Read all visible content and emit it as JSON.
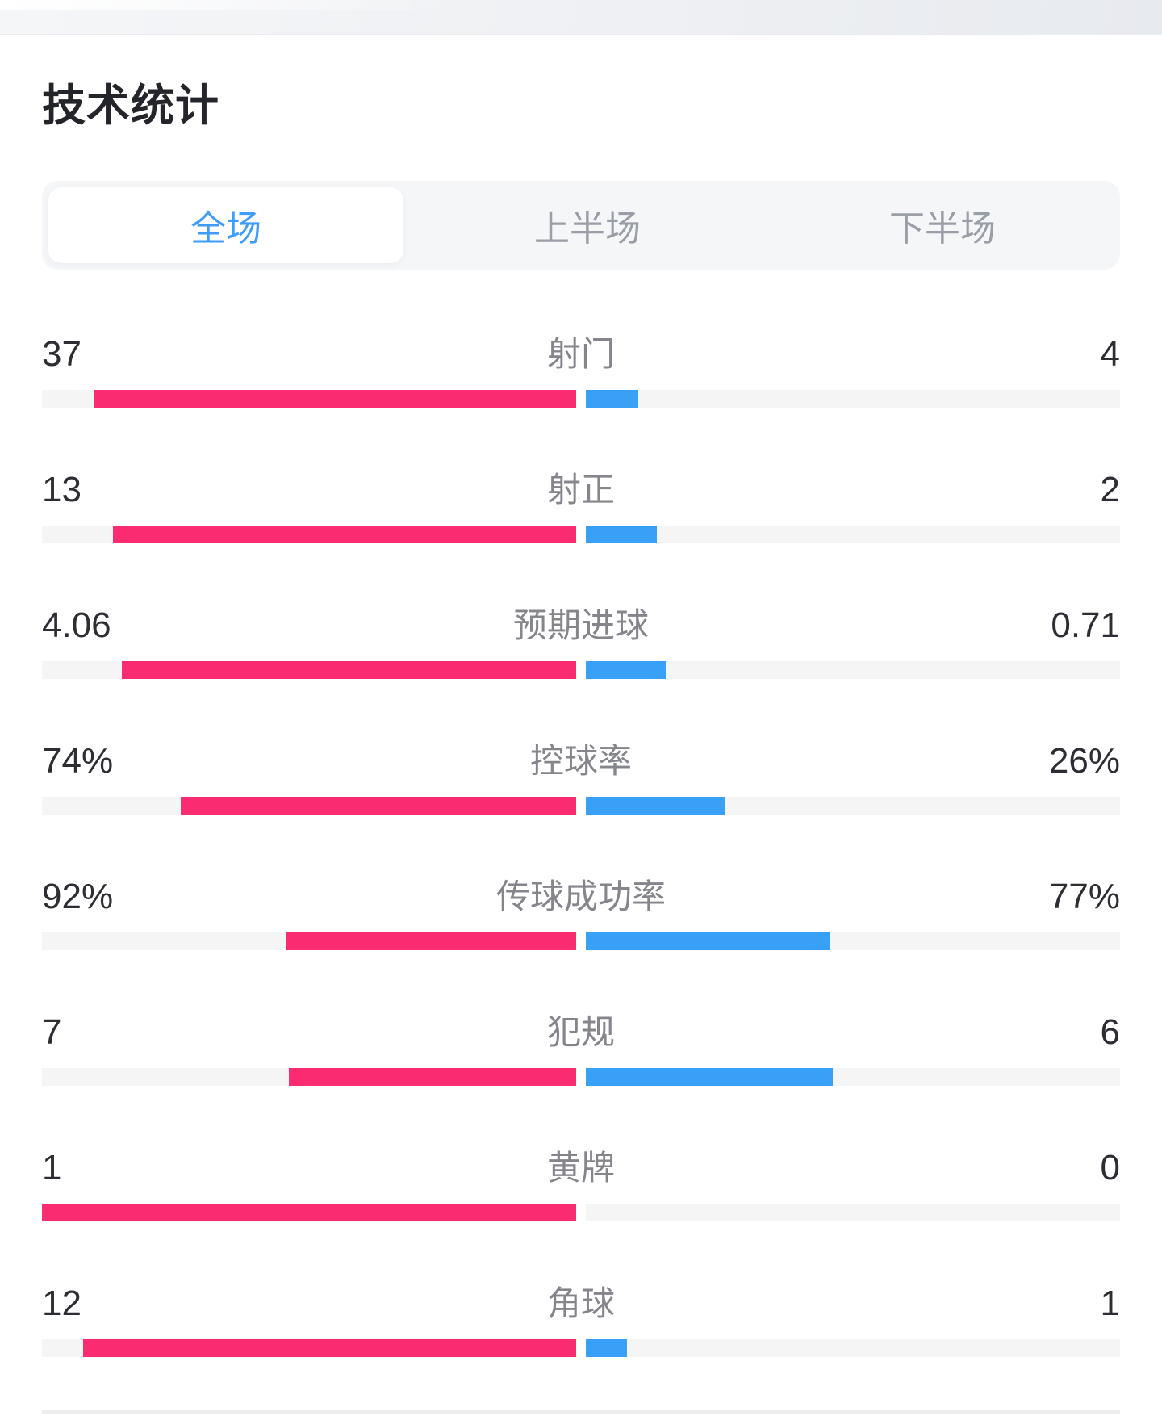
{
  "page": {
    "title": "技术统计"
  },
  "tabs": [
    {
      "label": "全场",
      "active": true
    },
    {
      "label": "上半场",
      "active": false
    },
    {
      "label": "下半场",
      "active": false
    }
  ],
  "colors": {
    "home_bar": "#fa2b70",
    "away_bar": "#38a1f7",
    "bar_track": "#f5f5f6",
    "active_tab_text": "#3f9cfa",
    "inactive_tab_text": "#9a9ea6"
  },
  "stats": {
    "rows": [
      {
        "label": "射门",
        "home": "37",
        "away": "4",
        "home_value": 37,
        "away_value": 4
      },
      {
        "label": "射正",
        "home": "13",
        "away": "2",
        "home_value": 13,
        "away_value": 2
      },
      {
        "label": "预期进球",
        "home": "4.06",
        "away": "0.71",
        "home_value": 4.06,
        "away_value": 0.71
      },
      {
        "label": "控球率",
        "home": "74%",
        "away": "26%",
        "home_value": 74,
        "away_value": 26
      },
      {
        "label": "传球成功率",
        "home": "92%",
        "away": "77%",
        "home_value": 92,
        "away_value": 77
      },
      {
        "label": "犯规",
        "home": "7",
        "away": "6",
        "home_value": 7,
        "away_value": 6
      },
      {
        "label": "黄牌",
        "home": "1",
        "away": "0",
        "home_value": 1,
        "away_value": 0
      },
      {
        "label": "角球",
        "home": "12",
        "away": "1",
        "home_value": 12,
        "away_value": 1
      }
    ]
  },
  "chart_data": {
    "type": "bar",
    "categories": [
      "射门",
      "射正",
      "预期进球",
      "控球率",
      "传球成功率",
      "犯规",
      "黄牌",
      "角球"
    ],
    "series": [
      {
        "name": "home",
        "values": [
          37,
          13,
          4.06,
          74,
          92,
          7,
          1,
          12
        ]
      },
      {
        "name": "away",
        "values": [
          4,
          2,
          0.71,
          26,
          77,
          6,
          0,
          1
        ]
      }
    ],
    "title": "技术统计",
    "legend_position": "none",
    "note": "each bar width = value / (home+away) share of its half, anchored at center gap"
  }
}
